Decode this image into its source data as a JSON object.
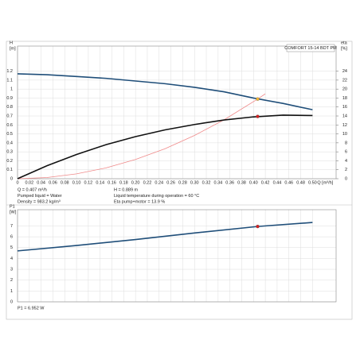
{
  "chart_data": [
    {
      "type": "line",
      "title": "COMFORT 15-14 BDT PM",
      "y_label": [
        "H",
        "[m]"
      ],
      "y2_label": [
        "eta",
        "[%]"
      ],
      "x_label": "Q [m³/h]",
      "xlim": [
        0,
        0.54
      ],
      "ylim": [
        0,
        1.48
      ],
      "y2lim": [
        0,
        29.6
      ],
      "grid": true,
      "xticks": [
        0,
        0.02,
        0.04,
        0.06,
        0.08,
        {
          "value": 0.1,
          "label": "0.10"
        },
        0.12,
        0.14,
        0.16,
        0.18,
        {
          "value": 0.2,
          "label": "0.20"
        },
        0.22,
        0.24,
        0.26,
        0.28,
        {
          "value": 0.3,
          "label": "0.30"
        },
        0.32,
        0.34,
        0.36,
        0.38,
        {
          "value": 0.4,
          "label": "0.40"
        },
        0.42,
        0.44,
        0.46,
        0.48,
        {
          "value": 0.5,
          "label": "0.50"
        }
      ],
      "yticks": [
        0,
        0.1,
        0.2,
        0.3,
        0.4,
        0.5,
        0.6,
        0.7,
        0.8,
        0.9,
        1,
        1.1,
        1.2
      ],
      "y2ticks": [
        0,
        2,
        4,
        6,
        8,
        10,
        12,
        14,
        16,
        18,
        20,
        22,
        24
      ],
      "series": [
        {
          "color": "#f08a8a",
          "width": 0.8,
          "x": [
            0,
            0.05,
            0.1,
            0.15,
            0.2,
            0.25,
            0.3,
            0.35,
            0.407,
            0.42
          ],
          "values": [
            0,
            0.013,
            0.054,
            0.121,
            0.215,
            0.335,
            0.483,
            0.657,
            0.889,
            0.947
          ]
        },
        {
          "color": "#1f4e79",
          "width": 1.6,
          "x": [
            0,
            0.05,
            0.1,
            0.15,
            0.2,
            0.25,
            0.3,
            0.35,
            0.4,
            0.45,
            0.5
          ],
          "values": [
            1.17,
            1.16,
            1.14,
            1.12,
            1.09,
            1.06,
            1.02,
            0.97,
            0.9,
            0.84,
            0.77
          ]
        },
        {
          "color": "#111111",
          "width": 1.6,
          "axis": "y2",
          "x": [
            0,
            0.05,
            0.1,
            0.15,
            0.2,
            0.25,
            0.3,
            0.35,
            0.4,
            0.45,
            0.5
          ],
          "values": [
            0,
            2.9,
            5.4,
            7.6,
            9.4,
            10.9,
            12.1,
            13.1,
            13.8,
            14.2,
            14.1
          ]
        }
      ],
      "markers": [
        {
          "x": 0.407,
          "y": 0.889,
          "color": "#f5b731"
        },
        {
          "x": 0.407,
          "y": 13.9,
          "axis": "y2",
          "color": "#d62020"
        }
      ],
      "info_left": [
        "Q = 0.407 m³/h",
        "Pumped liquid = Water",
        "Density = 983.2 kg/m³"
      ],
      "info_right": [
        "H = 0.889 m",
        "Liquid temperature during operation = 60 °C",
        "Eta pump+motor = 13.9 %"
      ]
    },
    {
      "type": "line",
      "y_label": [
        "P1",
        "[W]"
      ],
      "xlim": [
        0,
        0.54
      ],
      "ylim": [
        0,
        8.5
      ],
      "grid": true,
      "xticks": [
        0,
        0.02,
        0.04,
        0.06,
        0.08,
        0.1,
        0.12,
        0.14,
        0.16,
        0.18,
        0.2,
        0.22,
        0.24,
        0.26,
        0.28,
        0.3,
        0.32,
        0.34,
        0.36,
        0.38,
        0.4,
        0.42,
        0.44,
        0.46,
        0.48,
        0.5
      ],
      "yticks": [
        0,
        1,
        2,
        3,
        4,
        5,
        6,
        7
      ],
      "series": [
        {
          "color": "#1f4e79",
          "width": 1.6,
          "x": [
            0,
            0.1,
            0.2,
            0.3,
            0.407,
            0.5
          ],
          "values": [
            4.7,
            5.2,
            5.75,
            6.35,
            6.952,
            7.32
          ]
        }
      ],
      "markers": [
        {
          "x": 0.407,
          "y": 6.952,
          "color": "#d62020"
        }
      ],
      "info_left": [
        "P1 = 6.952 W"
      ]
    }
  ]
}
